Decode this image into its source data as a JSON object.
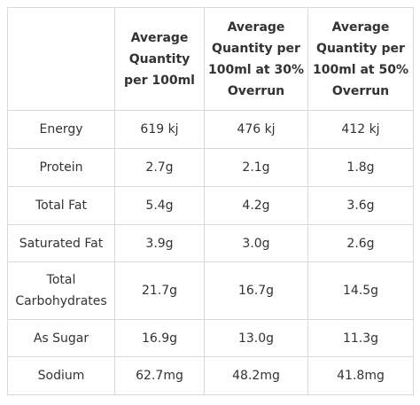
{
  "table": {
    "headers": [
      "",
      "Average Quantity per 100ml",
      "Average Quantity per 100ml at 30% Overrun",
      "Average Quantity per 100ml at 50% Overrun"
    ],
    "rows": [
      {
        "label": "Energy",
        "values": [
          "619 kj",
          "476 kj",
          "412 kj"
        ]
      },
      {
        "label": "Protein",
        "values": [
          "2.7g",
          "2.1g",
          "1.8g"
        ]
      },
      {
        "label": "Total Fat",
        "values": [
          "5.4g",
          "4.2g",
          "3.6g"
        ]
      },
      {
        "label": "Saturated Fat",
        "values": [
          "3.9g",
          "3.0g",
          "2.6g"
        ]
      },
      {
        "label": "Total Carbohydrates",
        "values": [
          "21.7g",
          "16.7g",
          "14.5g"
        ]
      },
      {
        "label": "As Sugar",
        "values": [
          "16.9g",
          "13.0g",
          "11.3g"
        ]
      },
      {
        "label": "Sodium",
        "values": [
          "62.7mg",
          "48.2mg",
          "41.8mg"
        ]
      }
    ]
  },
  "colors": {
    "text": "#333333",
    "border": "#d8d8d8",
    "background": "#ffffff"
  }
}
